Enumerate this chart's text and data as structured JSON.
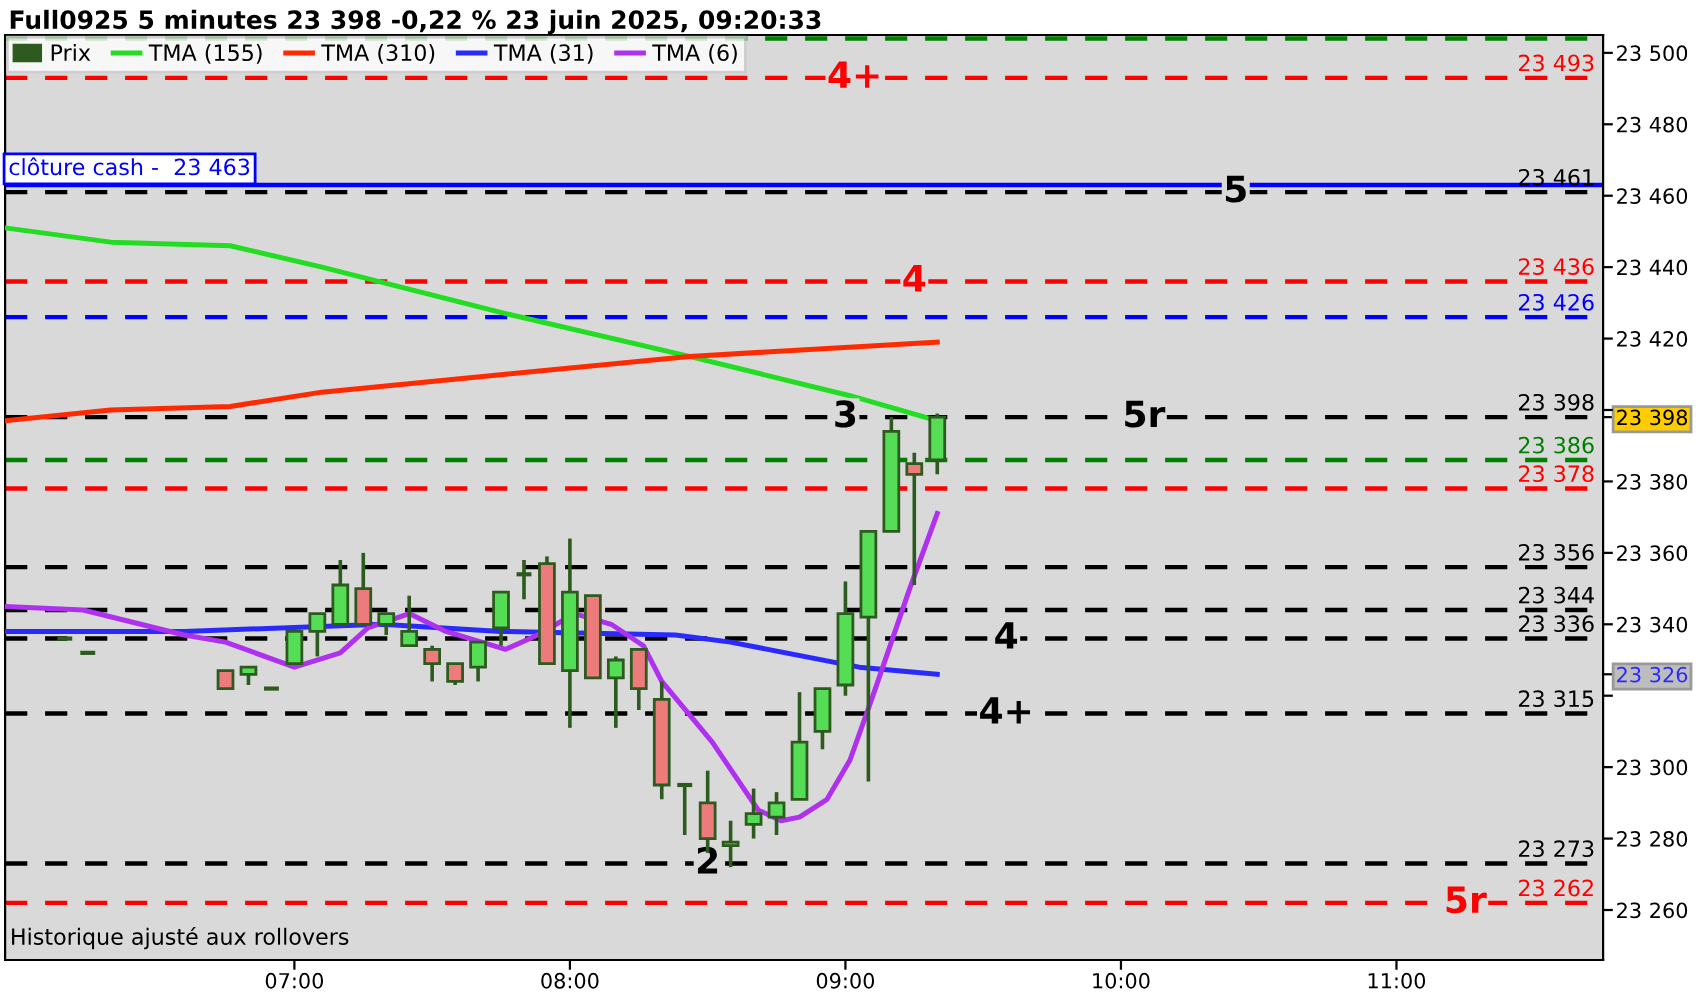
{
  "chart_data": {
    "type": "candlestick",
    "title": "Full0925 5 minutes 23 398 -0,22 % 23 juin 2025, 09:20:33",
    "xlim": [
      "2025-06-23T05:57",
      "2025-06-23T11:45"
    ],
    "xticks": [
      {
        "value": "2025-06-23T07:00",
        "label": "07:00"
      },
      {
        "value": "2025-06-23T08:00",
        "label": "08:00"
      },
      {
        "value": "2025-06-23T09:00",
        "label": "09:00"
      },
      {
        "value": "2025-06-23T10:00",
        "label": "10:00"
      },
      {
        "value": "2025-06-23T11:00",
        "label": "11:00"
      }
    ],
    "ylim": [
      23246,
      23505
    ],
    "yticks": [
      {
        "value": 23260,
        "label": "23 260"
      },
      {
        "value": 23280,
        "label": "23 280"
      },
      {
        "value": 23300,
        "label": "23 300"
      },
      {
        "value": 23320,
        "label": null
      },
      {
        "value": 23326,
        "label": "23 326"
      },
      {
        "value": 23340,
        "label": "23 340"
      },
      {
        "value": 23360,
        "label": "23 360"
      },
      {
        "value": 23380,
        "label": "23 380"
      },
      {
        "value": 23398,
        "label": "23 398"
      },
      {
        "value": 23400,
        "label": null
      },
      {
        "value": 23420,
        "label": "23 420"
      },
      {
        "value": 23440,
        "label": "23 440"
      },
      {
        "value": 23460,
        "label": "23 460"
      },
      {
        "value": 23480,
        "label": "23 480"
      },
      {
        "value": 23500,
        "label": "23 500"
      }
    ],
    "legend": "top left",
    "grid": false,
    "series": [
      {
        "name": "Prix",
        "x": [
          "2025-06-23T06:10",
          "2025-06-23T06:15",
          "2025-06-23T06:45",
          "2025-06-23T06:50",
          "2025-06-23T06:55",
          "2025-06-23T07:00",
          "2025-06-23T07:05",
          "2025-06-23T07:10",
          "2025-06-23T07:15",
          "2025-06-23T07:20",
          "2025-06-23T07:25",
          "2025-06-23T07:30",
          "2025-06-23T07:35",
          "2025-06-23T07:40",
          "2025-06-23T07:45",
          "2025-06-23T07:50",
          "2025-06-23T07:55",
          "2025-06-23T08:00",
          "2025-06-23T08:05",
          "2025-06-23T08:10",
          "2025-06-23T08:15",
          "2025-06-23T08:20",
          "2025-06-23T08:25",
          "2025-06-23T08:30",
          "2025-06-23T08:35",
          "2025-06-23T08:40",
          "2025-06-23T08:45",
          "2025-06-23T08:50",
          "2025-06-23T08:55",
          "2025-06-23T09:00",
          "2025-06-23T09:05",
          "2025-06-23T09:10",
          "2025-06-23T09:15",
          "2025-06-23T09:20"
        ],
        "ohlc": [
          [
            23336,
            23336,
            23336,
            23336
          ],
          [
            23332,
            23332,
            23332,
            23332
          ],
          [
            23327,
            23327,
            23322,
            23322
          ],
          [
            23326,
            23328,
            23323,
            23328
          ],
          [
            23322,
            23322,
            23322,
            23322
          ],
          [
            23329,
            23338,
            23329,
            23338
          ],
          [
            23338,
            23343,
            23331,
            23343
          ],
          [
            23340,
            23358,
            23340,
            23351
          ],
          [
            23350,
            23360,
            23340,
            23340
          ],
          [
            23340,
            23343,
            23337,
            23343
          ],
          [
            23334,
            23348,
            23334,
            23338
          ],
          [
            23333,
            23334,
            23324,
            23329
          ],
          [
            23329,
            23329,
            23323,
            23324
          ],
          [
            23328,
            23335,
            23324,
            23335
          ],
          [
            23339,
            23349,
            23334,
            23349
          ],
          [
            23354,
            23358,
            23347,
            23354
          ],
          [
            23357,
            23359,
            23329,
            23329
          ],
          [
            23327,
            23364,
            23311,
            23349
          ],
          [
            23348,
            23348,
            23325,
            23325
          ],
          [
            23325,
            23331,
            23311,
            23330
          ],
          [
            23333,
            23333,
            23316,
            23322
          ],
          [
            23319,
            23324,
            23291,
            23295
          ],
          [
            23295,
            23295,
            23281,
            23295
          ],
          [
            23290,
            23299,
            23276,
            23280
          ],
          [
            23278,
            23285,
            23272,
            23279
          ],
          [
            23284,
            23294,
            23280,
            23287
          ],
          [
            23286,
            23293,
            23281,
            23290
          ],
          [
            23291,
            23321,
            23291,
            23307
          ],
          [
            23310,
            23322,
            23305,
            23322
          ],
          [
            23323,
            23352,
            23320,
            23343
          ],
          [
            23342,
            23366,
            23296,
            23366
          ],
          [
            23366,
            23398,
            23366,
            23394
          ],
          [
            23385,
            23388,
            23351,
            23382
          ],
          [
            23386,
            23399,
            23382,
            23398
          ]
        ],
        "colors": [
          "#2d5a1e",
          "#2d5a1e",
          "#ee7b7b",
          "#55dd55",
          "#2d5a1e",
          "#55dd55",
          "#55dd55",
          "#55dd55",
          "#ee7b7b",
          "#55dd55",
          "#55dd55",
          "#ee7b7b",
          "#ee7b7b",
          "#55dd55",
          "#55dd55",
          "#2d5a1e",
          "#ee7b7b",
          "#55dd55",
          "#ee7b7b",
          "#55dd55",
          "#ee7b7b",
          "#ee7b7b",
          "#2d5a1e",
          "#ee7b7b",
          "#55dd55",
          "#55dd55",
          "#55dd55",
          "#55dd55",
          "#55dd55",
          "#55dd55",
          "#55dd55",
          "#55dd55",
          "#ee7b7b",
          "#55dd55"
        ]
      },
      {
        "type": "line",
        "name": "TMA (155)",
        "color": "#22dd22",
        "x": [
          "2025-06-23T05:57",
          "2025-06-23T06:20",
          "2025-06-23T06:46",
          "2025-06-23T07:06",
          "2025-06-23T07:46",
          "2025-06-23T08:26",
          "2025-06-23T09:01",
          "2025-06-23T09:20"
        ],
        "values": [
          23451,
          23447,
          23446,
          23440,
          23427,
          23415,
          23404,
          23397
        ]
      },
      {
        "type": "line",
        "name": "TMA (310)",
        "color": "#ff2a00",
        "x": [
          "2025-06-23T05:57",
          "2025-06-23T06:20",
          "2025-06-23T06:46",
          "2025-06-23T07:06",
          "2025-06-23T07:46",
          "2025-06-23T08:26",
          "2025-06-23T09:20"
        ],
        "values": [
          23397,
          23400,
          23401,
          23405,
          23410,
          23415,
          23419
        ]
      },
      {
        "type": "line",
        "name": "TMA (31)",
        "color": "#2a2aff",
        "x": [
          "2025-06-23T05:57",
          "2025-06-23T06:36",
          "2025-06-23T07:19",
          "2025-06-23T07:45",
          "2025-06-23T08:23",
          "2025-06-23T08:35",
          "2025-06-23T09:03",
          "2025-06-23T09:20"
        ],
        "values": [
          23338,
          23338,
          23340,
          23338,
          23337,
          23335,
          23328,
          23326
        ]
      },
      {
        "type": "line",
        "name": "TMA (6)",
        "color": "#b030f0",
        "x": [
          "2025-06-23T05:57",
          "2025-06-23T06:14",
          "2025-06-23T06:36",
          "2025-06-23T06:45",
          "2025-06-23T07:00",
          "2025-06-23T07:10",
          "2025-06-23T07:16",
          "2025-06-23T07:25",
          "2025-06-23T07:33",
          "2025-06-23T07:46",
          "2025-06-23T07:53",
          "2025-06-23T08:01",
          "2025-06-23T08:09",
          "2025-06-23T08:16",
          "2025-06-23T08:20",
          "2025-06-23T08:31",
          "2025-06-23T08:41",
          "2025-06-23T08:46",
          "2025-06-23T08:50",
          "2025-06-23T08:56",
          "2025-06-23T09:01",
          "2025-06-23T09:06",
          "2025-06-23T09:14",
          "2025-06-23T09:20"
        ],
        "values": [
          23345,
          23344,
          23337,
          23335,
          23328,
          23332,
          23339,
          23343,
          23338,
          23333,
          23337,
          23343,
          23340,
          23334,
          23324,
          23307,
          23288,
          23285,
          23286,
          23291,
          23302,
          23320,
          23350,
          23371
        ]
      }
    ],
    "ref_lines": [
      {
        "axis": "y",
        "value": 23504,
        "color": "#008000",
        "line_style": "dashed"
      },
      {
        "axis": "y",
        "value": 23493,
        "label": "23 493",
        "color": "#ff0000",
        "line_style": "dashed"
      },
      {
        "axis": "y",
        "value": 23463,
        "label": "clôture cash -  23 463",
        "color": "#0000ff",
        "line_style": "solid"
      },
      {
        "axis": "y",
        "value": 23461,
        "label": "23 461",
        "color": "#000000",
        "line_style": "dashed"
      },
      {
        "axis": "y",
        "value": 23436,
        "label": "23 436",
        "color": "#ff0000",
        "line_style": "dashed"
      },
      {
        "axis": "y",
        "value": 23426,
        "label": "23 426",
        "color": "#0000ff",
        "line_style": "dashed"
      },
      {
        "axis": "y",
        "value": 23398,
        "label": "23 398",
        "color": "#000000",
        "line_style": "dashed"
      },
      {
        "axis": "y",
        "value": 23386,
        "label": "23 386",
        "color": "#008000",
        "line_style": "dashed"
      },
      {
        "axis": "y",
        "value": 23378,
        "label": "23 378",
        "color": "#ff0000",
        "line_style": "dashed"
      },
      {
        "axis": "y",
        "value": 23356,
        "label": "23 356",
        "color": "#000000",
        "line_style": "dashed"
      },
      {
        "axis": "y",
        "value": 23344,
        "label": "23 344",
        "color": "#000000",
        "line_style": "dashed"
      },
      {
        "axis": "y",
        "value": 23336,
        "label": "23 336",
        "color": "#000000",
        "line_style": "dashed"
      },
      {
        "axis": "y",
        "value": 23315,
        "label": "23 315",
        "color": "#000000",
        "line_style": "dashed"
      },
      {
        "axis": "y",
        "value": 23273,
        "label": "23 273",
        "color": "#000000",
        "line_style": "dashed"
      },
      {
        "axis": "y",
        "value": 23262,
        "label": "23 262",
        "color": "#ff0000",
        "line_style": "dashed"
      }
    ],
    "annotations": [
      {
        "text": "4+",
        "x": "2025-06-23T09:02",
        "y": 23493
      },
      {
        "text": "5",
        "x": "2025-06-23T10:25",
        "y": 23461
      },
      {
        "text": "4",
        "x": "2025-06-23T09:15",
        "y": 23436
      },
      {
        "text": "3",
        "x": "2025-06-23T09:00",
        "y": 23398
      },
      {
        "text": "5r",
        "x": "2025-06-23T10:05",
        "y": 23398
      },
      {
        "text": "4",
        "x": "2025-06-23T09:35",
        "y": 23336
      },
      {
        "text": "4+",
        "x": "2025-06-23T09:35",
        "y": 23315
      },
      {
        "text": "2",
        "x": "2025-06-23T08:30",
        "y": 23273
      },
      {
        "text": "5r",
        "x": "2025-06-23T11:15",
        "y": 23262
      },
      "Historique ajusté aux rollovers"
    ]
  }
}
